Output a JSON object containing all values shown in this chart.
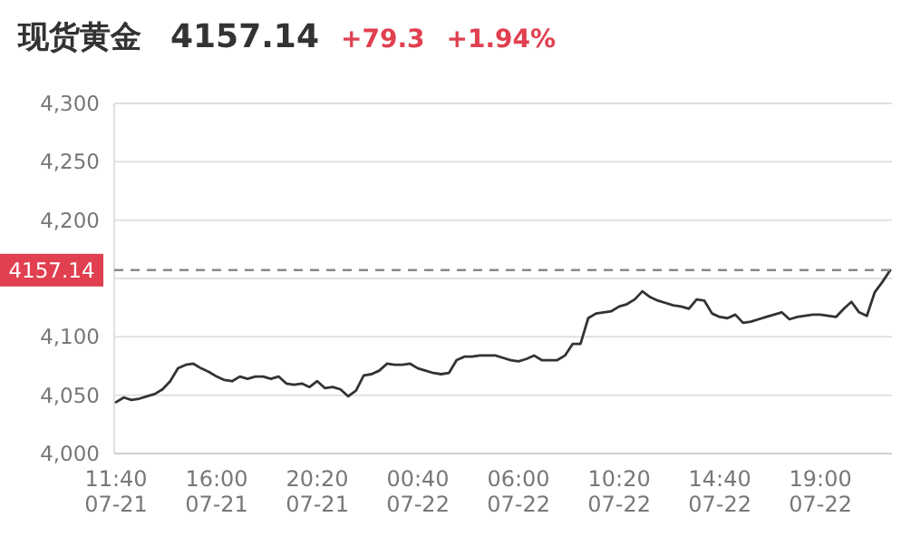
{
  "chart_data": {
    "type": "line",
    "title": "现货黄金",
    "annotations": [
      "4157.14",
      "+79.3",
      "+1.94%"
    ],
    "categories": [
      "11:40\n07-21",
      null,
      null,
      null,
      null,
      null,
      null,
      null,
      null,
      null,
      null,
      null,
      null,
      "16:00\n07-21",
      null,
      null,
      null,
      null,
      null,
      null,
      null,
      null,
      null,
      null,
      null,
      null,
      "20:20\n07-21",
      null,
      null,
      null,
      null,
      null,
      null,
      null,
      null,
      null,
      null,
      null,
      null,
      "00:40\n07-22",
      null,
      null,
      null,
      null,
      null,
      null,
      null,
      null,
      null,
      null,
      null,
      null,
      "06:00\n07-22",
      null,
      null,
      null,
      null,
      null,
      null,
      null,
      null,
      null,
      null,
      null,
      null,
      "10:20\n07-22",
      null,
      null,
      null,
      null,
      null,
      null,
      null,
      null,
      null,
      null,
      null,
      null,
      "14:40\n07-22",
      null,
      null,
      null,
      null,
      null,
      null,
      null,
      null,
      null,
      null,
      null,
      null,
      "19:00\n07-22",
      null,
      null,
      null,
      null,
      null,
      null,
      null,
      null,
      null
    ],
    "series": [
      {
        "color": "#333333",
        "values": [
          4044,
          4048,
          4046,
          4047,
          4049,
          4051,
          4055,
          4062,
          4073,
          4076,
          4077,
          4073,
          4070,
          4066,
          4063,
          4062,
          4066,
          4064,
          4066,
          4066,
          4064,
          4066,
          4060,
          4059,
          4060,
          4057,
          4062,
          4056,
          4057,
          4055,
          4049,
          4054,
          4067,
          4068,
          4071,
          4077,
          4076,
          4076,
          4077,
          4073,
          4071,
          4069,
          4068,
          4069,
          4080,
          4083,
          4083,
          4084,
          4084,
          4084,
          4082,
          4080,
          4079,
          4081,
          4084,
          4080,
          4080,
          4080,
          4084,
          4094,
          4094,
          4116,
          4120,
          4121,
          4122,
          4126,
          4128,
          4132,
          4139,
          4134,
          4131,
          4129,
          4127,
          4126,
          4124,
          4132,
          4131,
          4120,
          4117,
          4116,
          4119,
          4112,
          4113,
          4115,
          4117,
          4119,
          4121,
          4115,
          4117,
          4118,
          4119,
          4119,
          4118,
          4117,
          4124,
          4130,
          4121,
          4118,
          4138,
          4147,
          4157
        ]
      }
    ],
    "ylim": [
      4000,
      4300
    ],
    "yticks": [
      {
        "value": 4000,
        "label": "4,000"
      },
      {
        "value": 4050,
        "label": "4,050"
      },
      {
        "value": 4100,
        "label": "4,100"
      },
      {
        "value": 4150,
        "label": null
      },
      {
        "value": 4200,
        "label": "4,200"
      },
      {
        "value": 4250,
        "label": "4,250"
      },
      {
        "value": 4300,
        "label": "4,300"
      }
    ],
    "grid": "y",
    "ref_lines": [
      {
        "axis": "y",
        "value": 4157.14,
        "label": "4157.14",
        "color": "#888888",
        "line_style": "dashed"
      }
    ]
  }
}
